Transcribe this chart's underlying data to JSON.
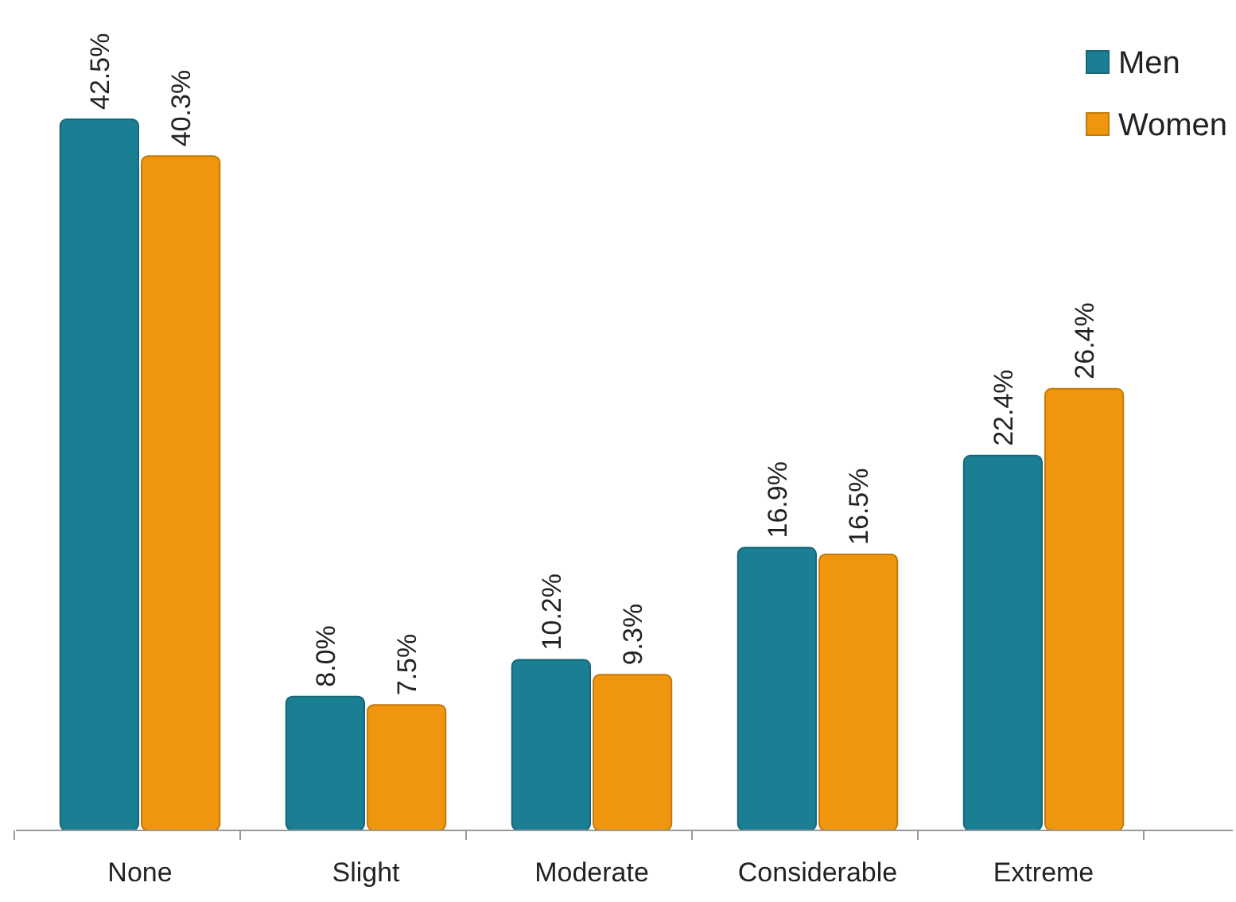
{
  "chart_data": {
    "type": "bar",
    "categories": [
      "None",
      "Slight",
      "Moderate",
      "Considerable",
      "Extreme"
    ],
    "series": [
      {
        "name": "Men",
        "color": "#1b7f93",
        "values": [
          42.5,
          8.0,
          10.2,
          16.9,
          22.4
        ],
        "value_labels": [
          "42.5%",
          "8.0%",
          "10.2%",
          "16.9%",
          "22.4%"
        ]
      },
      {
        "name": "Women",
        "color": "#f0960e",
        "values": [
          40.3,
          7.5,
          9.3,
          16.5,
          26.4
        ],
        "value_labels": [
          "40.3%",
          "7.5%",
          "9.3%",
          "16.5%",
          "26.4%"
        ]
      }
    ],
    "legend": "top right"
  }
}
